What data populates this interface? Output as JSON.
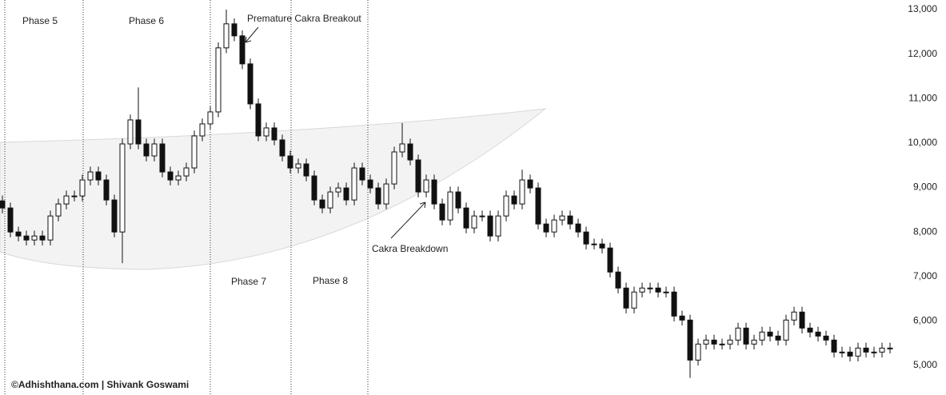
{
  "chart_data": {
    "type": "candlestick",
    "up_color": "#ffffff",
    "down_color": "#111111",
    "wick_color": "#111111",
    "ylim": [
      4335,
      13216
    ],
    "yticks": [
      {
        "value": 5000,
        "label": "5,000"
      },
      {
        "value": 6000,
        "label": "6,000"
      },
      {
        "value": 7000,
        "label": "7,000"
      },
      {
        "value": 8000,
        "label": "8,000"
      },
      {
        "value": 9000,
        "label": "9,000"
      },
      {
        "value": 10000,
        "label": "10,000"
      },
      {
        "value": 11000,
        "label": "11,000"
      },
      {
        "value": 12000,
        "label": "12,000"
      },
      {
        "value": 13000,
        "label": "13,000"
      }
    ],
    "annotations": [
      "Phase 5",
      "Phase 6",
      "Phase 7",
      "Phase 8",
      "Premature Cakra Breakout",
      "Cakra Breakdown"
    ],
    "watermark": "©Adhishthana.com | Shivank Goswami",
    "open": [
      8700,
      8540,
      8000,
      7910,
      7820,
      7910,
      7820,
      8360,
      8630,
      8810,
      8810,
      9170,
      9350,
      9170,
      8720,
      8000,
      9980,
      10520,
      9980,
      9710,
      9980,
      9350,
      9170,
      9260,
      9440,
      10160,
      10430,
      10700,
      12140,
      12680,
      12410,
      11780,
      10880,
      10160,
      10340,
      10070,
      9710,
      9440,
      9530,
      9260,
      8720,
      8540,
      8900,
      8990,
      8720,
      9440,
      9170,
      8990,
      8630,
      9080,
      9800,
      9980,
      9620,
      8900,
      9170,
      8630,
      8270,
      8900,
      8540,
      8090,
      8360,
      8360,
      7910,
      8360,
      8810,
      8630,
      9170,
      8990,
      8180,
      8000,
      8270,
      8360,
      8180,
      8000,
      7730,
      7730,
      7640,
      7100,
      6740,
      6290,
      6650,
      6740,
      6740,
      6650,
      6650,
      6110,
      6020,
      5120,
      5480,
      5570,
      5480,
      5480,
      5570,
      5840,
      5480,
      5570,
      5750,
      5660,
      5570,
      6020,
      6200,
      5840,
      5750,
      5660,
      5570,
      5300,
      5300,
      5210,
      5390,
      5300,
      5300,
      5390
    ],
    "high": [
      8820,
      8660,
      8120,
      8030,
      8030,
      8030,
      8480,
      8750,
      8930,
      8930,
      9290,
      9470,
      9470,
      9290,
      8840,
      10100,
      10640,
      11250,
      10100,
      10100,
      10100,
      9470,
      9380,
      9560,
      10280,
      10550,
      10820,
      12260,
      13000,
      12800,
      12530,
      11900,
      11000,
      10460,
      10460,
      10190,
      9830,
      9650,
      9650,
      9380,
      8840,
      9020,
      9110,
      9110,
      9560,
      9560,
      9290,
      9110,
      9200,
      9920,
      10450,
      10100,
      9740,
      9290,
      9290,
      8750,
      9020,
      9020,
      8660,
      8480,
      8480,
      8480,
      8480,
      8930,
      8930,
      9400,
      9290,
      9110,
      8300,
      8390,
      8480,
      8480,
      8300,
      8120,
      7850,
      7850,
      7760,
      7220,
      6860,
      6770,
      6860,
      6860,
      6860,
      6770,
      6770,
      6230,
      6140,
      5600,
      5690,
      5690,
      5600,
      5690,
      5960,
      5960,
      5690,
      5870,
      5870,
      5780,
      6140,
      6320,
      6320,
      5960,
      5870,
      5780,
      5690,
      5420,
      5420,
      5510,
      5510,
      5420,
      5510,
      5510
    ],
    "low": [
      8420,
      7880,
      7790,
      7700,
      7700,
      7700,
      7700,
      8240,
      8510,
      8690,
      8690,
      9050,
      9050,
      8600,
      7880,
      7300,
      9860,
      9860,
      9590,
      9590,
      9230,
      9050,
      9050,
      9140,
      9320,
      10040,
      10310,
      10580,
      12020,
      12290,
      11660,
      10760,
      10040,
      10040,
      9950,
      9590,
      9320,
      9320,
      9140,
      8600,
      8420,
      8420,
      8780,
      8600,
      8600,
      9050,
      8870,
      8510,
      8510,
      8960,
      9680,
      9500,
      8780,
      8780,
      8510,
      8150,
      8150,
      8420,
      7970,
      7970,
      8240,
      7790,
      7790,
      8240,
      8510,
      8510,
      8870,
      8060,
      7880,
      7880,
      8150,
      8060,
      7880,
      7610,
      7610,
      7520,
      6980,
      6620,
      6170,
      6170,
      6530,
      6620,
      6530,
      6530,
      5990,
      5900,
      4720,
      5000,
      5360,
      5360,
      5360,
      5360,
      5450,
      5360,
      5360,
      5450,
      5540,
      5450,
      5450,
      5900,
      5720,
      5630,
      5540,
      5450,
      5180,
      5180,
      5090,
      5090,
      5180,
      5180,
      5180,
      5270
    ],
    "close": [
      8540,
      8000,
      7910,
      7820,
      7910,
      7820,
      8360,
      8630,
      8810,
      8810,
      9170,
      9350,
      9170,
      8720,
      8000,
      9980,
      10520,
      9980,
      9710,
      9980,
      9350,
      9170,
      9260,
      9440,
      10160,
      10430,
      10700,
      12140,
      12680,
      12410,
      11780,
      10880,
      10160,
      10340,
      10070,
      9710,
      9440,
      9530,
      9260,
      8720,
      8540,
      8900,
      8990,
      8720,
      9440,
      9170,
      8990,
      8630,
      9080,
      9800,
      9980,
      9620,
      8900,
      9170,
      8630,
      8270,
      8900,
      8540,
      8090,
      8360,
      8360,
      7910,
      8360,
      8810,
      8630,
      9170,
      8990,
      8180,
      8000,
      8270,
      8360,
      8180,
      8000,
      7730,
      7730,
      7640,
      7100,
      6740,
      6290,
      6650,
      6740,
      6740,
      6650,
      6650,
      6110,
      6020,
      5120,
      5480,
      5570,
      5480,
      5480,
      5570,
      5840,
      5480,
      5570,
      5750,
      5660,
      5570,
      6020,
      6200,
      5840,
      5750,
      5660,
      5570,
      5300,
      5300,
      5210,
      5390,
      5300,
      5300,
      5390,
      5390
    ]
  }
}
